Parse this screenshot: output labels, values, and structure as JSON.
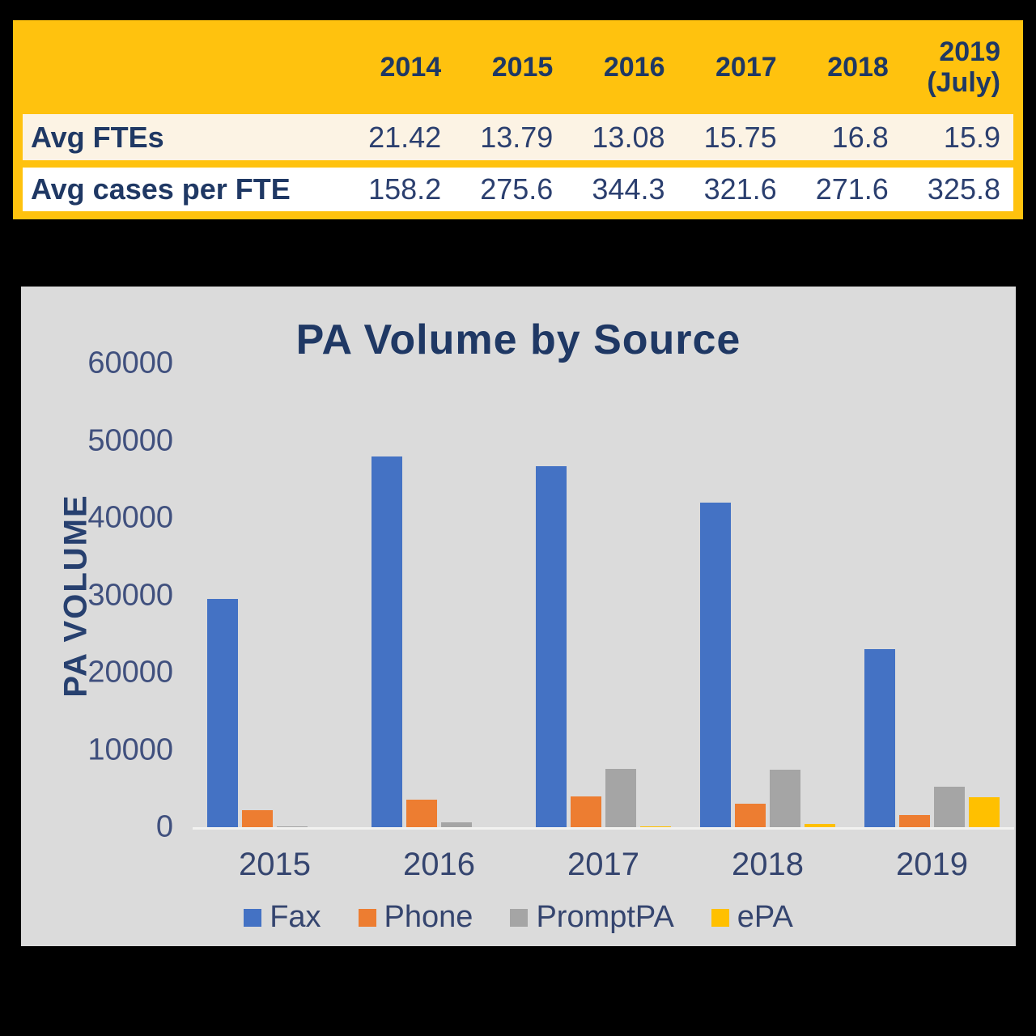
{
  "colors": {
    "page_background": "#000000",
    "table_gold": "#FFC20E",
    "table_row1_cream": "#FCF3E4",
    "table_row2_white": "#FFFFFF",
    "navy_text": "#1F3864",
    "chart_panel_gray": "#DBDBDB",
    "fax_blue": "#4472C4",
    "phone_orange": "#ED7D31",
    "promptpa_gray": "#A5A5A5",
    "epa_yellow": "#FFC000"
  },
  "table": {
    "column_headers": [
      "2014",
      "2015",
      "2016",
      "2017",
      "2018",
      "2019\n(July)"
    ],
    "rows": [
      {
        "label": "Avg FTEs",
        "values": [
          "21.42",
          "13.79",
          "13.08",
          "15.75",
          "16.8",
          "15.9"
        ]
      },
      {
        "label": "Avg cases per FTE",
        "values": [
          "158.2",
          "275.6",
          "344.3",
          "321.6",
          "271.6",
          "325.8"
        ]
      }
    ]
  },
  "chart_data": {
    "type": "bar",
    "title": "PA Volume by Source",
    "xlabel": "",
    "ylabel": "PA VOLUME",
    "ylim": [
      0,
      60000
    ],
    "yticks": [
      0,
      10000,
      20000,
      30000,
      40000,
      50000,
      60000
    ],
    "grid": false,
    "legend_position": "bottom",
    "categories": [
      "2015",
      "2016",
      "2017",
      "2018",
      "2019"
    ],
    "series": [
      {
        "name": "Fax",
        "color": "#4472C4",
        "values": [
          29500,
          48000,
          46700,
          42000,
          23000
        ]
      },
      {
        "name": "Phone",
        "color": "#ED7D31",
        "values": [
          2200,
          3600,
          4000,
          3000,
          1600
        ]
      },
      {
        "name": "PromptPA",
        "color": "#A5A5A5",
        "values": [
          150,
          600,
          7500,
          7400,
          5200
        ]
      },
      {
        "name": "ePA",
        "color": "#FFC000",
        "values": [
          0,
          0,
          100,
          400,
          3900
        ]
      }
    ]
  }
}
